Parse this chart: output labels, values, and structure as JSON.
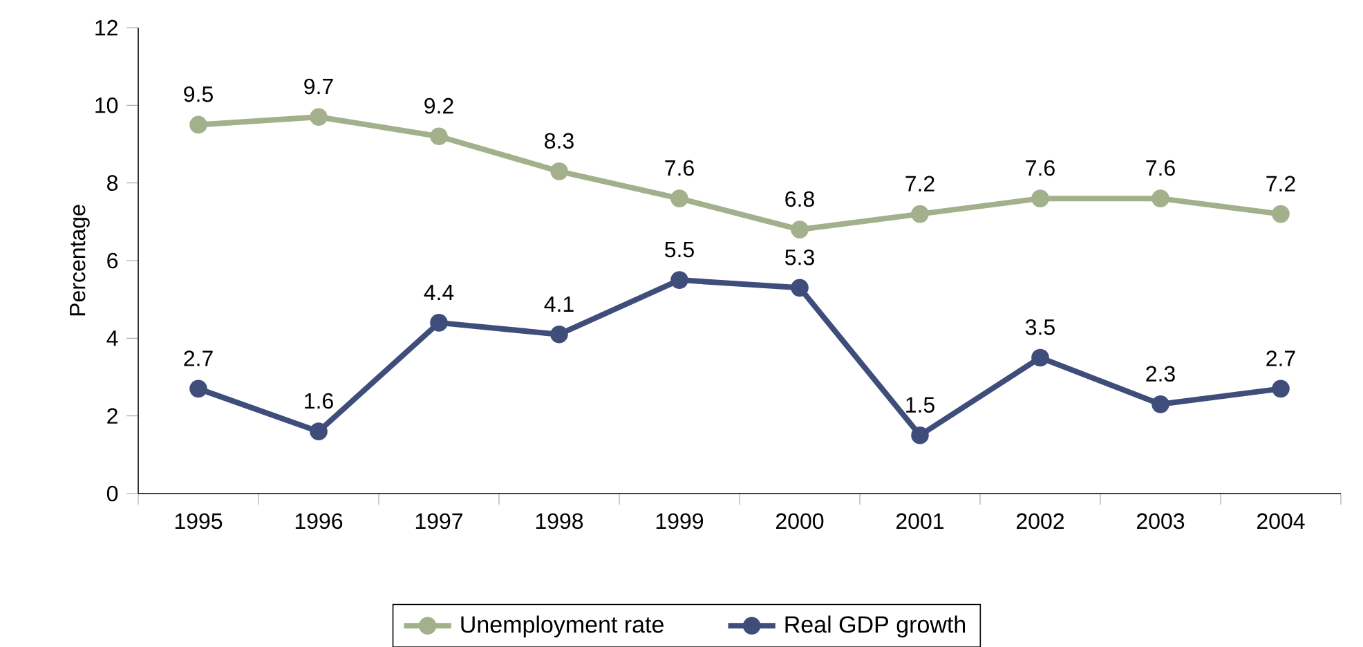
{
  "chart_data": {
    "type": "line",
    "ylabel": "Percentage",
    "categories": [
      "1995",
      "1996",
      "1997",
      "1998",
      "1999",
      "2000",
      "2001",
      "2002",
      "2003",
      "2004"
    ],
    "series": [
      {
        "name": "Unemployment rate",
        "color": "#a3b08c",
        "values": [
          9.5,
          9.7,
          9.2,
          8.3,
          7.6,
          6.8,
          7.2,
          7.6,
          7.6,
          7.2
        ]
      },
      {
        "name": "Real GDP growth",
        "color": "#3f4d7a",
        "values": [
          2.7,
          1.6,
          4.4,
          4.1,
          5.5,
          5.3,
          1.5,
          3.5,
          2.3,
          2.7
        ]
      }
    ],
    "ylim": [
      0,
      12
    ],
    "yticks": [
      0,
      2,
      4,
      6,
      8,
      10,
      12
    ],
    "grid": false,
    "legend": "bottom",
    "marker": "circle",
    "line_style": "solid",
    "data_labels": true
  }
}
